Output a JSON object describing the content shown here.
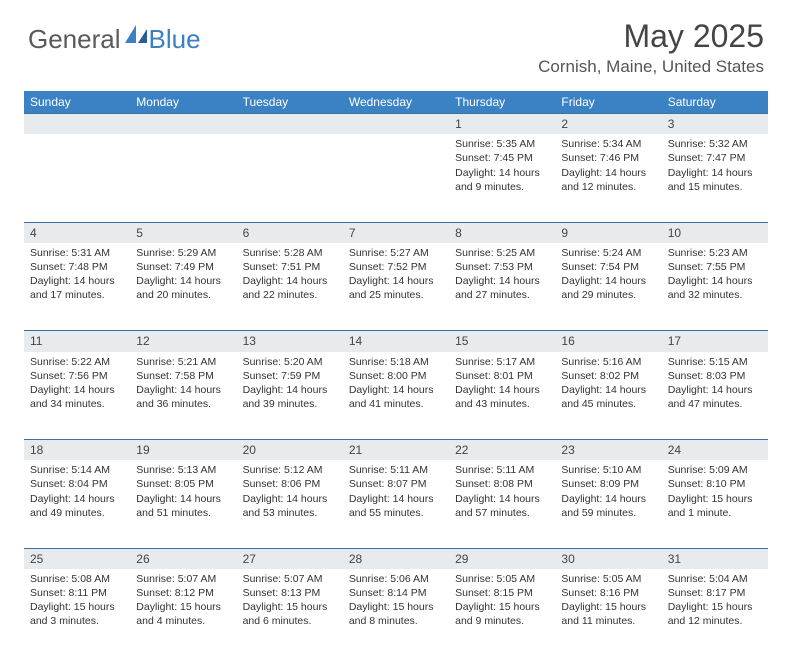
{
  "brand": {
    "text1": "General",
    "text2": "Blue"
  },
  "title": "May 2025",
  "location": "Cornish, Maine, United States",
  "colors": {
    "header_bg": "#3b82c4",
    "header_text": "#ffffff",
    "daynum_bg": "#e8ebee",
    "cell_border": "#3b6fa0",
    "brand_gray": "#5a5a5a",
    "brand_blue": "#3b7fc4"
  },
  "day_headers": [
    "Sunday",
    "Monday",
    "Tuesday",
    "Wednesday",
    "Thursday",
    "Friday",
    "Saturday"
  ],
  "weeks": [
    [
      null,
      null,
      null,
      null,
      {
        "n": "1",
        "sr": "5:35 AM",
        "ss": "7:45 PM",
        "dl": "14 hours and 9 minutes."
      },
      {
        "n": "2",
        "sr": "5:34 AM",
        "ss": "7:46 PM",
        "dl": "14 hours and 12 minutes."
      },
      {
        "n": "3",
        "sr": "5:32 AM",
        "ss": "7:47 PM",
        "dl": "14 hours and 15 minutes."
      }
    ],
    [
      {
        "n": "4",
        "sr": "5:31 AM",
        "ss": "7:48 PM",
        "dl": "14 hours and 17 minutes."
      },
      {
        "n": "5",
        "sr": "5:29 AM",
        "ss": "7:49 PM",
        "dl": "14 hours and 20 minutes."
      },
      {
        "n": "6",
        "sr": "5:28 AM",
        "ss": "7:51 PM",
        "dl": "14 hours and 22 minutes."
      },
      {
        "n": "7",
        "sr": "5:27 AM",
        "ss": "7:52 PM",
        "dl": "14 hours and 25 minutes."
      },
      {
        "n": "8",
        "sr": "5:25 AM",
        "ss": "7:53 PM",
        "dl": "14 hours and 27 minutes."
      },
      {
        "n": "9",
        "sr": "5:24 AM",
        "ss": "7:54 PM",
        "dl": "14 hours and 29 minutes."
      },
      {
        "n": "10",
        "sr": "5:23 AM",
        "ss": "7:55 PM",
        "dl": "14 hours and 32 minutes."
      }
    ],
    [
      {
        "n": "11",
        "sr": "5:22 AM",
        "ss": "7:56 PM",
        "dl": "14 hours and 34 minutes."
      },
      {
        "n": "12",
        "sr": "5:21 AM",
        "ss": "7:58 PM",
        "dl": "14 hours and 36 minutes."
      },
      {
        "n": "13",
        "sr": "5:20 AM",
        "ss": "7:59 PM",
        "dl": "14 hours and 39 minutes."
      },
      {
        "n": "14",
        "sr": "5:18 AM",
        "ss": "8:00 PM",
        "dl": "14 hours and 41 minutes."
      },
      {
        "n": "15",
        "sr": "5:17 AM",
        "ss": "8:01 PM",
        "dl": "14 hours and 43 minutes."
      },
      {
        "n": "16",
        "sr": "5:16 AM",
        "ss": "8:02 PM",
        "dl": "14 hours and 45 minutes."
      },
      {
        "n": "17",
        "sr": "5:15 AM",
        "ss": "8:03 PM",
        "dl": "14 hours and 47 minutes."
      }
    ],
    [
      {
        "n": "18",
        "sr": "5:14 AM",
        "ss": "8:04 PM",
        "dl": "14 hours and 49 minutes."
      },
      {
        "n": "19",
        "sr": "5:13 AM",
        "ss": "8:05 PM",
        "dl": "14 hours and 51 minutes."
      },
      {
        "n": "20",
        "sr": "5:12 AM",
        "ss": "8:06 PM",
        "dl": "14 hours and 53 minutes."
      },
      {
        "n": "21",
        "sr": "5:11 AM",
        "ss": "8:07 PM",
        "dl": "14 hours and 55 minutes."
      },
      {
        "n": "22",
        "sr": "5:11 AM",
        "ss": "8:08 PM",
        "dl": "14 hours and 57 minutes."
      },
      {
        "n": "23",
        "sr": "5:10 AM",
        "ss": "8:09 PM",
        "dl": "14 hours and 59 minutes."
      },
      {
        "n": "24",
        "sr": "5:09 AM",
        "ss": "8:10 PM",
        "dl": "15 hours and 1 minute."
      }
    ],
    [
      {
        "n": "25",
        "sr": "5:08 AM",
        "ss": "8:11 PM",
        "dl": "15 hours and 3 minutes."
      },
      {
        "n": "26",
        "sr": "5:07 AM",
        "ss": "8:12 PM",
        "dl": "15 hours and 4 minutes."
      },
      {
        "n": "27",
        "sr": "5:07 AM",
        "ss": "8:13 PM",
        "dl": "15 hours and 6 minutes."
      },
      {
        "n": "28",
        "sr": "5:06 AM",
        "ss": "8:14 PM",
        "dl": "15 hours and 8 minutes."
      },
      {
        "n": "29",
        "sr": "5:05 AM",
        "ss": "8:15 PM",
        "dl": "15 hours and 9 minutes."
      },
      {
        "n": "30",
        "sr": "5:05 AM",
        "ss": "8:16 PM",
        "dl": "15 hours and 11 minutes."
      },
      {
        "n": "31",
        "sr": "5:04 AM",
        "ss": "8:17 PM",
        "dl": "15 hours and 12 minutes."
      }
    ]
  ],
  "labels": {
    "sunrise": "Sunrise: ",
    "sunset": "Sunset: ",
    "daylight": "Daylight: "
  }
}
